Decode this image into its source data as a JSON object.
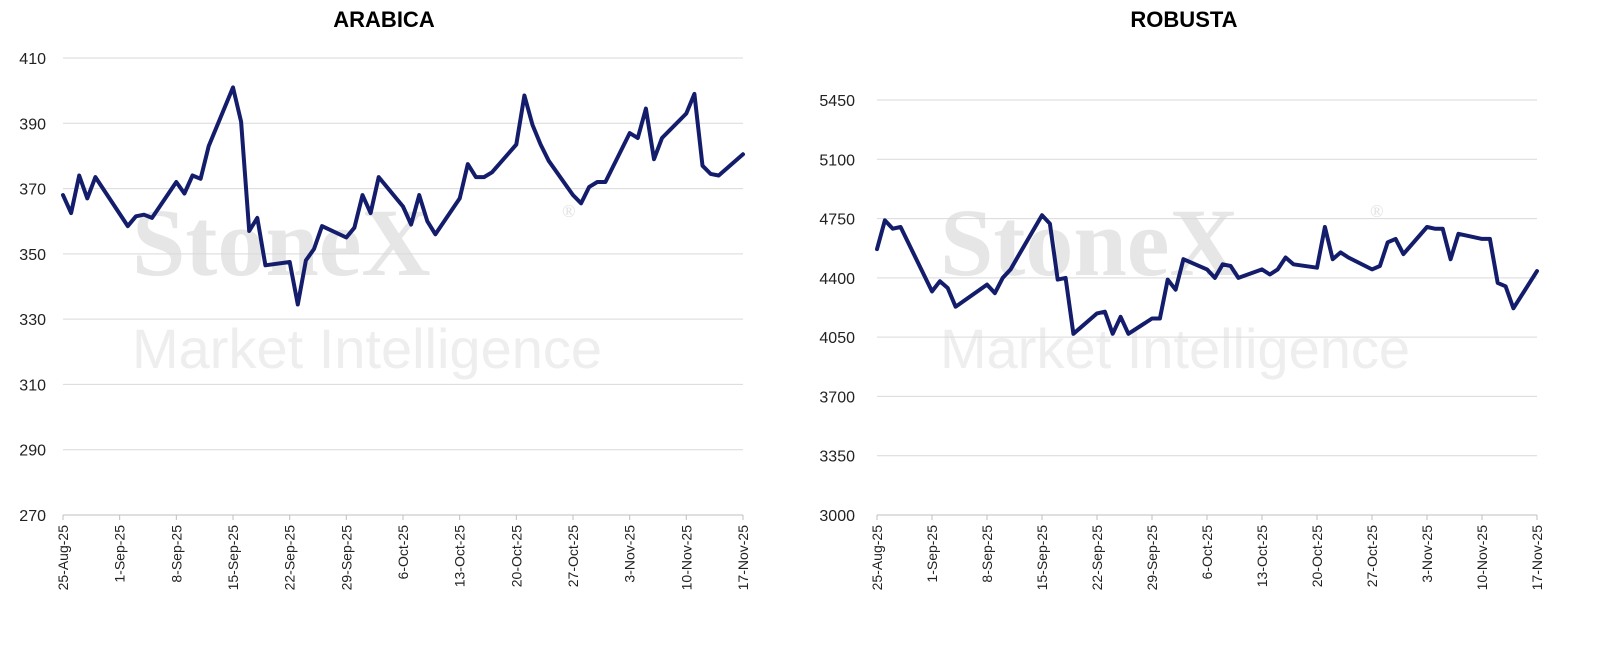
{
  "chart_data": [
    {
      "id": "arabica",
      "type": "line",
      "title": "ARABICA",
      "ylim": [
        270,
        410
      ],
      "yticks": [
        270,
        290,
        310,
        330,
        350,
        370,
        390,
        410
      ],
      "xlim": [
        "2025-08-25",
        "2025-11-17"
      ],
      "xticks": [
        {
          "date": "2025-08-25",
          "label": "25-Aug-25"
        },
        {
          "date": "2025-09-01",
          "label": "1-Sep-25"
        },
        {
          "date": "2025-09-08",
          "label": "8-Sep-25"
        },
        {
          "date": "2025-09-15",
          "label": "15-Sep-25"
        },
        {
          "date": "2025-09-22",
          "label": "22-Sep-25"
        },
        {
          "date": "2025-09-29",
          "label": "29-Sep-25"
        },
        {
          "date": "2025-10-06",
          "label": "6-Oct-25"
        },
        {
          "date": "2025-10-13",
          "label": "13-Oct-25"
        },
        {
          "date": "2025-10-20",
          "label": "20-Oct-25"
        },
        {
          "date": "2025-10-27",
          "label": "27-Oct-25"
        },
        {
          "date": "2025-11-03",
          "label": "3-Nov-25"
        },
        {
          "date": "2025-11-10",
          "label": "10-Nov-25"
        },
        {
          "date": "2025-11-17",
          "label": "17-Nov-25"
        }
      ],
      "grid": true,
      "legend": "none",
      "color": "#141d6b",
      "series": [
        {
          "x": [
            "2025-08-25",
            "2025-08-26",
            "2025-08-27",
            "2025-08-28",
            "2025-08-29",
            "2025-09-02",
            "2025-09-03",
            "2025-09-04",
            "2025-09-05",
            "2025-09-08",
            "2025-09-09",
            "2025-09-10",
            "2025-09-11",
            "2025-09-12",
            "2025-09-15",
            "2025-09-16",
            "2025-09-17",
            "2025-09-18",
            "2025-09-19",
            "2025-09-22",
            "2025-09-23",
            "2025-09-24",
            "2025-09-25",
            "2025-09-26",
            "2025-09-29",
            "2025-09-30",
            "2025-10-01",
            "2025-10-02",
            "2025-10-03",
            "2025-10-06",
            "2025-10-07",
            "2025-10-08",
            "2025-10-09",
            "2025-10-10",
            "2025-10-13",
            "2025-10-14",
            "2025-10-15",
            "2025-10-16",
            "2025-10-17",
            "2025-10-20",
            "2025-10-21",
            "2025-10-22",
            "2025-10-23",
            "2025-10-24",
            "2025-10-27",
            "2025-10-28",
            "2025-10-29",
            "2025-10-30",
            "2025-10-31",
            "2025-11-03",
            "2025-11-04",
            "2025-11-05",
            "2025-11-06",
            "2025-11-07",
            "2025-11-10",
            "2025-11-11",
            "2025-11-12",
            "2025-11-13",
            "2025-11-14",
            "2025-11-17"
          ],
          "values": [
            368,
            362.5,
            374,
            367,
            373.5,
            358.5,
            361.5,
            362,
            361,
            372,
            368.5,
            374,
            373,
            383,
            401,
            390.5,
            357,
            361,
            346.5,
            347.5,
            334.5,
            348,
            351.5,
            358.5,
            355,
            358,
            368,
            362.5,
            373.5,
            364.5,
            359,
            368,
            360,
            356,
            367,
            377.5,
            373.5,
            373.5,
            375,
            383.5,
            398.5,
            389.5,
            383.5,
            378.5,
            368,
            365.5,
            370.5,
            372,
            372,
            387,
            385.5,
            394.5,
            379,
            385.5,
            393,
            399,
            377,
            374.5,
            374,
            380.5
          ]
        }
      ],
      "watermark": {
        "brand": "StoneX",
        "mark": "®",
        "sub": "Market Intelligence"
      }
    },
    {
      "id": "robusta",
      "type": "line",
      "title": "ROBUSTA",
      "ylim": [
        3000,
        5450
      ],
      "yticks": [
        3000,
        3350,
        3700,
        4050,
        4400,
        4750,
        5100,
        5450
      ],
      "xlim": [
        "2025-08-25",
        "2025-11-17"
      ],
      "xticks": [
        {
          "date": "2025-08-25",
          "label": "25-Aug-25"
        },
        {
          "date": "2025-09-01",
          "label": "1-Sep-25"
        },
        {
          "date": "2025-09-08",
          "label": "8-Sep-25"
        },
        {
          "date": "2025-09-15",
          "label": "15-Sep-25"
        },
        {
          "date": "2025-09-22",
          "label": "22-Sep-25"
        },
        {
          "date": "2025-09-29",
          "label": "29-Sep-25"
        },
        {
          "date": "2025-10-06",
          "label": "6-Oct-25"
        },
        {
          "date": "2025-10-13",
          "label": "13-Oct-25"
        },
        {
          "date": "2025-10-20",
          "label": "20-Oct-25"
        },
        {
          "date": "2025-10-27",
          "label": "27-Oct-25"
        },
        {
          "date": "2025-11-03",
          "label": "3-Nov-25"
        },
        {
          "date": "2025-11-10",
          "label": "10-Nov-25"
        },
        {
          "date": "2025-11-17",
          "label": "17-Nov-25"
        }
      ],
      "grid": true,
      "legend": "none",
      "color": "#141d6b",
      "series": [
        {
          "x": [
            "2025-08-25",
            "2025-08-26",
            "2025-08-27",
            "2025-08-28",
            "2025-09-01",
            "2025-09-02",
            "2025-09-03",
            "2025-09-04",
            "2025-09-08",
            "2025-09-09",
            "2025-09-10",
            "2025-09-11",
            "2025-09-12",
            "2025-09-15",
            "2025-09-16",
            "2025-09-17",
            "2025-09-18",
            "2025-09-19",
            "2025-09-22",
            "2025-09-23",
            "2025-09-24",
            "2025-09-25",
            "2025-09-26",
            "2025-09-29",
            "2025-09-30",
            "2025-10-01",
            "2025-10-02",
            "2025-10-03",
            "2025-10-06",
            "2025-10-07",
            "2025-10-08",
            "2025-10-09",
            "2025-10-10",
            "2025-10-13",
            "2025-10-14",
            "2025-10-15",
            "2025-10-16",
            "2025-10-17",
            "2025-10-20",
            "2025-10-21",
            "2025-10-22",
            "2025-10-23",
            "2025-10-24",
            "2025-10-27",
            "2025-10-28",
            "2025-10-29",
            "2025-10-30",
            "2025-10-31",
            "2025-11-03",
            "2025-11-04",
            "2025-11-05",
            "2025-11-06",
            "2025-11-07",
            "2025-11-10",
            "2025-11-11",
            "2025-11-12",
            "2025-11-13",
            "2025-11-14",
            "2025-11-17"
          ],
          "values": [
            4570,
            4740,
            4690,
            4700,
            4320,
            4380,
            4340,
            4230,
            4360,
            4310,
            4400,
            4450,
            4530,
            4770,
            4720,
            4390,
            4400,
            4070,
            4190,
            4200,
            4070,
            4170,
            4070,
            4160,
            4160,
            4390,
            4330,
            4510,
            4450,
            4400,
            4480,
            4470,
            4400,
            4450,
            4420,
            4450,
            4520,
            4480,
            4460,
            4700,
            4510,
            4550,
            4520,
            4450,
            4470,
            4610,
            4630,
            4540,
            4700,
            4690,
            4690,
            4510,
            4660,
            4630,
            4630,
            4370,
            4350,
            4220,
            4440
          ]
        }
      ],
      "watermark": {
        "brand": "StoneX",
        "mark": "®",
        "sub": "Market Intelligence"
      }
    }
  ]
}
